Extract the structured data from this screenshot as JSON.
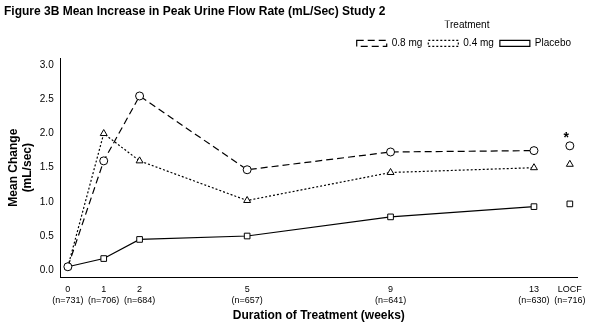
{
  "chart_data": {
    "type": "line",
    "title": "Figure 3B Mean Increase in Peak Urine Flow Rate (mL/Sec) Study 2",
    "x_label": "Duration of Treatment (weeks)",
    "y_label": "Mean Change\n(mL/sec)",
    "legend_title": "Treatment",
    "legend": "top",
    "grid": false,
    "x": [
      0,
      1,
      2,
      5,
      9,
      13,
      14
    ],
    "series": [
      {
        "name": "0.8 mg",
        "color": "#000000",
        "marker": "circle",
        "line_style": "dashed",
        "values": [
          0.05,
          1.6,
          2.55,
          1.47,
          1.73,
          1.75,
          1.82
        ]
      },
      {
        "name": "0.4 mg",
        "color": "#000000",
        "marker": "triangle",
        "line_style": "dotted",
        "values": [
          0.05,
          2.0,
          1.6,
          1.02,
          1.43,
          1.5,
          1.55
        ]
      },
      {
        "name": "Placebo",
        "color": "#000000",
        "marker": "square",
        "line_style": "solid",
        "values": [
          0.05,
          0.17,
          0.45,
          0.5,
          0.78,
          0.93,
          0.97
        ]
      }
    ],
    "xlim": [
      -0.2,
      14.2
    ],
    "xticks": [
      {
        "value": 0,
        "label": "0\n(n=731)"
      },
      {
        "value": 1,
        "label": "1\n(n=706)"
      },
      {
        "value": 2,
        "label": "2\n(n=684)"
      },
      {
        "value": 5,
        "label": "5\n(n=657)"
      },
      {
        "value": 9,
        "label": "9\n(n=641)"
      },
      {
        "value": 13,
        "label": "13\n(n=630)"
      },
      {
        "value": 14,
        "label": "LOCF\n(n=716)"
      }
    ],
    "ylim": [
      -0.1,
      3.1
    ],
    "yticks": [
      {
        "value": 0,
        "label": "0.0"
      },
      {
        "value": 0.5,
        "label": "0.5"
      },
      {
        "value": 1,
        "label": "1.0"
      },
      {
        "value": 1.5,
        "label": "1.5"
      },
      {
        "value": 2,
        "label": "2.0"
      },
      {
        "value": 2.5,
        "label": "2.5"
      },
      {
        "value": 3,
        "label": "3.0"
      }
    ],
    "annotations": [
      {
        "text": "*",
        "x": 14,
        "y": 1.82
      }
    ]
  }
}
